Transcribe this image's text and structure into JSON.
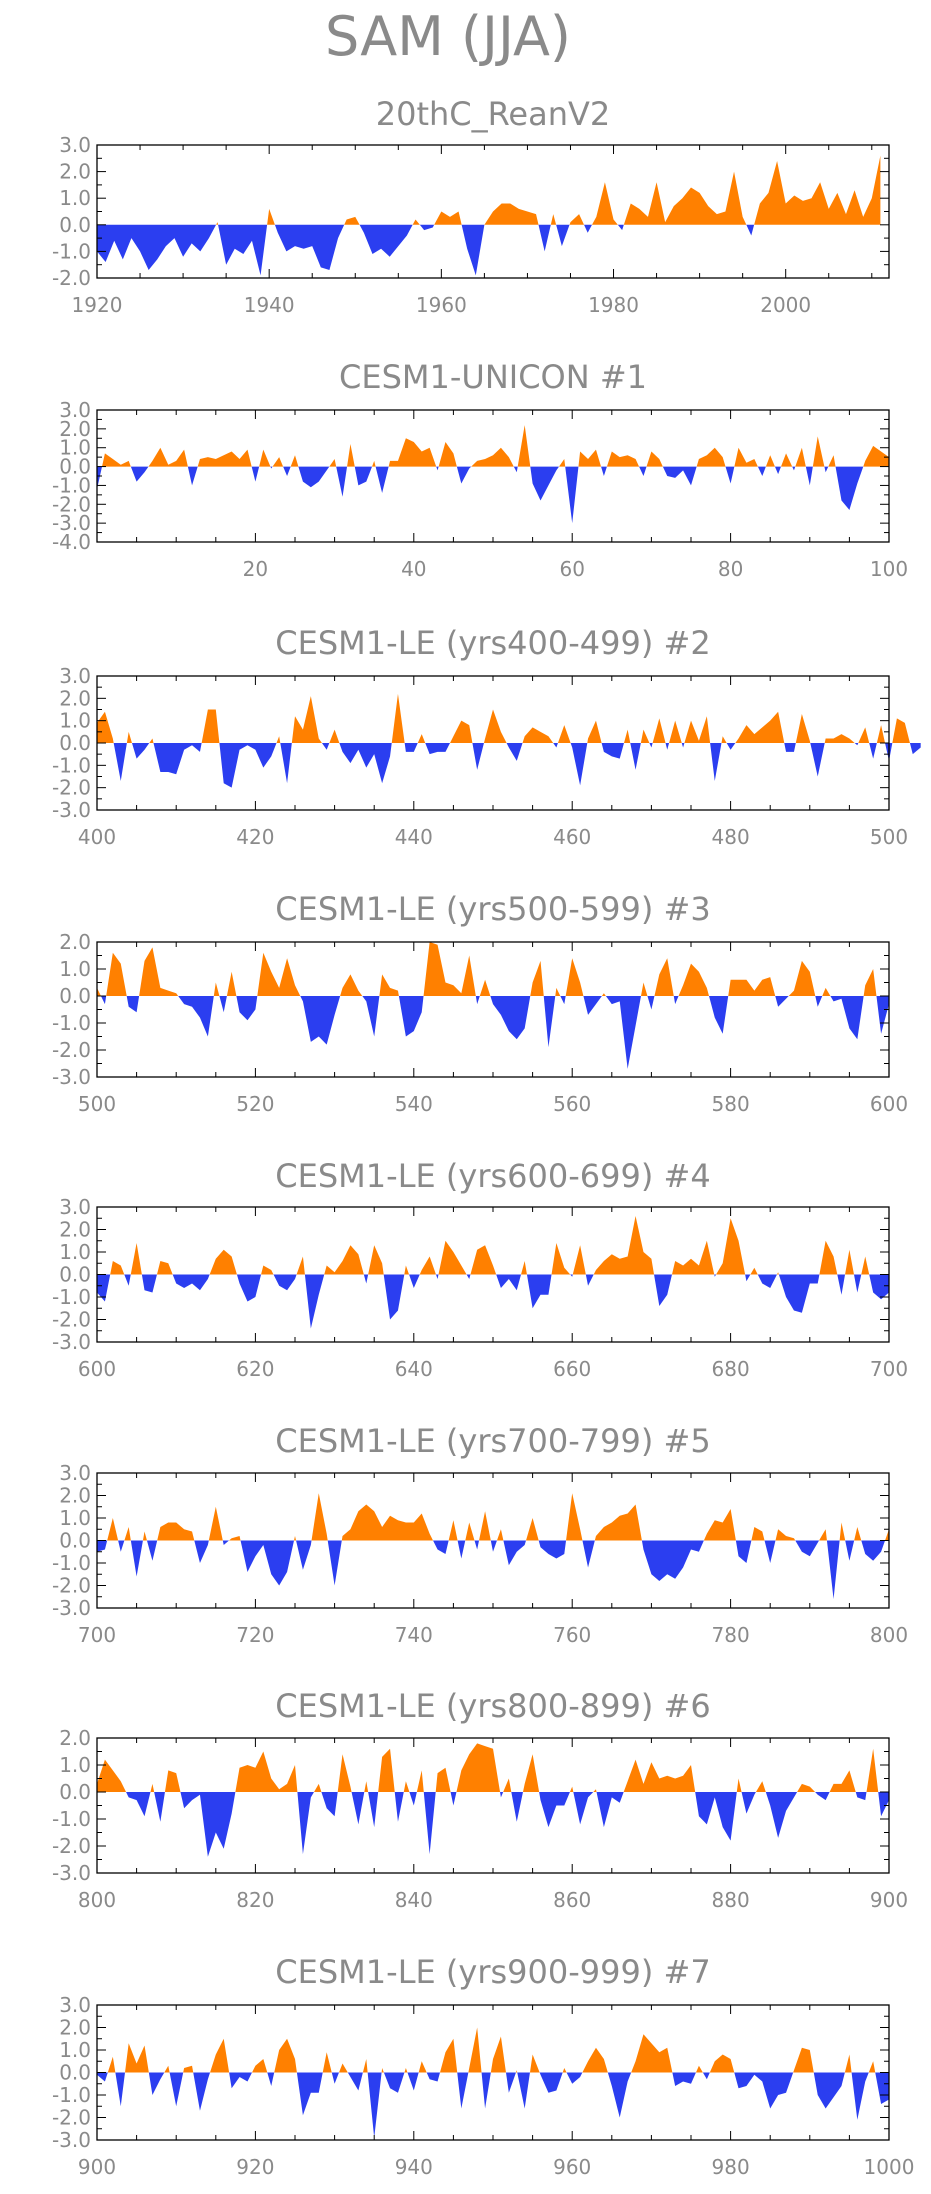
{
  "page_title": "SAM (JJA)",
  "colors": {
    "positive": "#ff8000",
    "negative": "#2b3ef0",
    "frame": "#000000",
    "text": "#8a8a8a"
  },
  "chart_data": [
    {
      "type": "area",
      "title": "20thC_ReanV2",
      "xlim": [
        1920,
        2012
      ],
      "ylim": [
        -2.0,
        3.0
      ],
      "x_ticks": [
        "1920",
        "1940",
        "1960",
        "1980",
        "2000"
      ],
      "y_ticks": [
        "3.0",
        "2.0",
        "1.0",
        "0.0",
        "-1.0",
        "-2.0"
      ],
      "x": [
        1920,
        1921,
        1922,
        1923,
        1924,
        1925,
        1926,
        1927,
        1928,
        1929,
        1930,
        1931,
        1932,
        1933,
        1934,
        1935,
        1936,
        1937,
        1938,
        1939,
        1940,
        1941,
        1942,
        1943,
        1944,
        1945,
        1946,
        1947,
        1948,
        1949,
        1950,
        1951,
        1952,
        1953,
        1954,
        1955,
        1956,
        1957,
        1958,
        1959,
        1960,
        1961,
        1962,
        1963,
        1964,
        1965,
        1966,
        1967,
        1968,
        1969,
        1970,
        1971,
        1972,
        1973,
        1974,
        1975,
        1976,
        1977,
        1978,
        1979,
        1980,
        1981,
        1982,
        1983,
        1984,
        1985,
        1986,
        1987,
        1988,
        1989,
        1990,
        1991,
        1992,
        1993,
        1994,
        1995,
        1996,
        1997,
        1998,
        1999,
        2000,
        2001,
        2002,
        2003,
        2004,
        2005,
        2006,
        2007,
        2008,
        2009,
        2010,
        2011
      ],
      "values": [
        -1.0,
        -1.4,
        -0.6,
        -1.3,
        -0.5,
        -1.0,
        -1.7,
        -1.3,
        -0.8,
        -0.5,
        -1.2,
        -0.7,
        -1.0,
        -0.5,
        0.1,
        -1.5,
        -0.9,
        -1.1,
        -0.6,
        -1.9,
        0.6,
        -0.3,
        -1.0,
        -0.8,
        -0.9,
        -0.8,
        -1.6,
        -1.7,
        -0.5,
        0.2,
        0.3,
        -0.3,
        -1.1,
        -0.9,
        -1.2,
        -0.8,
        -0.4,
        0.2,
        -0.2,
        -0.1,
        0.5,
        0.3,
        0.5,
        -0.9,
        -1.9,
        0.0,
        0.5,
        0.8,
        0.8,
        0.6,
        0.5,
        0.4,
        -1.0,
        0.4,
        -0.8,
        0.1,
        0.4,
        -0.3,
        0.3,
        1.6,
        0.2,
        -0.2,
        0.8,
        0.6,
        0.3,
        1.6,
        0.1,
        0.7,
        1.0,
        1.4,
        1.2,
        0.7,
        0.4,
        0.5,
        2.0,
        0.3,
        -0.4,
        0.8,
        1.2,
        2.4,
        0.8,
        1.1,
        0.9,
        1.0,
        1.6,
        0.6,
        1.2,
        0.4,
        1.3,
        0.3,
        1.0,
        2.6
      ]
    },
    {
      "type": "area",
      "title": "CESM1-UNICON          #1",
      "xlim": [
        0,
        100
      ],
      "ylim": [
        -4.0,
        3.0
      ],
      "x_ticks": [
        "20",
        "40",
        "60",
        "80",
        "100"
      ],
      "y_ticks": [
        "3.0",
        "2.0",
        "1.0",
        "0.0",
        "-1.0",
        "-2.0",
        "-3.0",
        "-4.0"
      ],
      "values": [
        -1.2,
        0.7,
        0.4,
        0.1,
        0.3,
        -0.8,
        -0.3,
        0.3,
        1.0,
        0.1,
        0.3,
        0.9,
        -1.0,
        0.4,
        0.5,
        0.4,
        0.6,
        0.8,
        0.4,
        0.9,
        -0.8,
        0.9,
        -0.1,
        0.5,
        -0.5,
        0.6,
        -0.8,
        -1.1,
        -0.8,
        -0.2,
        0.4,
        -1.6,
        1.2,
        -1.0,
        -0.8,
        0.3,
        -1.4,
        0.3,
        0.3,
        1.5,
        1.3,
        0.8,
        1.0,
        -0.2,
        1.3,
        0.7,
        -0.9,
        -0.1,
        0.3,
        0.4,
        0.6,
        1.0,
        0.5,
        -0.3,
        2.2,
        -0.9,
        -1.8,
        -1.0,
        -0.2,
        0.4,
        -3.0,
        0.8,
        0.4,
        0.9,
        -0.5,
        0.8,
        0.5,
        0.6,
        0.4,
        -0.5,
        0.8,
        0.4,
        -0.5,
        -0.6,
        -0.2,
        -1.0,
        0.4,
        0.6,
        1.0,
        0.5,
        -0.9,
        1.0,
        0.2,
        0.4,
        -0.5,
        0.6,
        -0.4,
        0.7,
        -0.2,
        1.0,
        -1.0,
        1.6,
        -0.3,
        0.6,
        -1.8,
        -2.3,
        -0.9,
        0.3,
        1.1,
        0.8,
        0.5
      ]
    },
    {
      "type": "area",
      "title": "CESM1-LE (yrs400-499) #2",
      "xlim": [
        400,
        500
      ],
      "ylim": [
        -3.0,
        3.0
      ],
      "x_ticks": [
        "400",
        "420",
        "440",
        "460",
        "480",
        "500"
      ],
      "y_ticks": [
        "3.0",
        "2.0",
        "1.0",
        "0.0",
        "-1.0",
        "-2.0",
        "-3.0"
      ],
      "values": [
        0.9,
        1.4,
        0.2,
        -1.7,
        0.5,
        -0.7,
        -0.3,
        0.2,
        -1.3,
        -1.3,
        -1.4,
        -0.3,
        -0.1,
        -0.4,
        1.5,
        1.5,
        -1.8,
        -2.0,
        -0.3,
        -0.1,
        -0.3,
        -1.1,
        -0.6,
        0.3,
        -1.8,
        1.2,
        0.6,
        2.1,
        0.2,
        -0.3,
        0.6,
        -0.4,
        -0.9,
        -0.3,
        -1.1,
        -0.5,
        -1.8,
        -0.6,
        2.2,
        -0.4,
        -0.4,
        0.4,
        -0.5,
        -0.4,
        -0.4,
        0.3,
        1.0,
        0.8,
        -1.2,
        0.2,
        1.5,
        0.5,
        -0.2,
        -0.8,
        0.3,
        0.7,
        0.5,
        0.3,
        -0.2,
        0.8,
        -0.2,
        -1.9,
        0.2,
        1.0,
        -0.4,
        -0.6,
        -0.7,
        0.6,
        -1.2,
        0.6,
        -0.2,
        1.1,
        -0.3,
        1.0,
        -0.2,
        1.0,
        0.1,
        1.2,
        -1.7,
        0.3,
        -0.3,
        0.2,
        0.8,
        0.4,
        0.7,
        1.0,
        1.4,
        -0.4,
        -0.4,
        1.3,
        0.1,
        -1.5,
        0.2,
        0.2,
        0.4,
        0.2,
        -0.1,
        0.7,
        -0.7,
        0.8,
        -0.8,
        1.1,
        0.9,
        -0.5,
        -0.2
      ]
    },
    {
      "type": "area",
      "title": "CESM1-LE (yrs500-599) #3",
      "xlim": [
        500,
        600
      ],
      "ylim": [
        -3.0,
        2.0
      ],
      "x_ticks": [
        "500",
        "520",
        "540",
        "560",
        "580",
        "600"
      ],
      "y_ticks": [
        "2.0",
        "1.0",
        "0.0",
        "-1.0",
        "-2.0",
        "-3.0"
      ],
      "values": [
        0.3,
        -0.3,
        1.6,
        1.2,
        -0.4,
        -0.6,
        1.3,
        1.8,
        0.3,
        0.2,
        0.1,
        -0.3,
        -0.4,
        -0.8,
        -1.5,
        0.5,
        -0.6,
        0.9,
        -0.6,
        -0.9,
        -0.5,
        1.6,
        0.9,
        0.3,
        1.4,
        0.4,
        -0.2,
        -1.7,
        -1.5,
        -1.8,
        -0.7,
        0.3,
        0.8,
        0.2,
        -0.2,
        -1.5,
        0.8,
        0.3,
        0.2,
        -1.5,
        -1.3,
        -0.6,
        2.0,
        1.9,
        0.5,
        0.4,
        0.1,
        1.5,
        -0.3,
        0.6,
        -0.3,
        -0.7,
        -1.3,
        -1.6,
        -1.2,
        0.5,
        1.3,
        -1.9,
        0.3,
        -0.3,
        1.4,
        0.5,
        -0.7,
        -0.3,
        0.1,
        -0.3,
        -0.2,
        -2.7,
        -1.1,
        0.5,
        -0.5,
        0.8,
        1.4,
        -0.3,
        0.4,
        1.2,
        0.9,
        0.3,
        -0.8,
        -1.4,
        0.6,
        0.6,
        0.6,
        0.2,
        0.6,
        0.7,
        -0.4,
        -0.1,
        0.2,
        1.3,
        0.9,
        -0.4,
        0.3,
        -0.2,
        -0.1,
        -1.2,
        -1.6,
        0.4,
        1.0,
        -1.4,
        -0.3
      ]
    },
    {
      "type": "area",
      "title": "CESM1-LE (yrs600-699) #4",
      "xlim": [
        600,
        700
      ],
      "ylim": [
        -3.0,
        3.0
      ],
      "x_ticks": [
        "600",
        "620",
        "640",
        "660",
        "680",
        "700"
      ],
      "y_ticks": [
        "3.0",
        "2.0",
        "1.0",
        "0.0",
        "-1.0",
        "-2.0",
        "-3.0"
      ],
      "values": [
        -0.8,
        -1.2,
        0.6,
        0.4,
        -0.5,
        1.4,
        -0.7,
        -0.8,
        0.6,
        0.5,
        -0.4,
        -0.6,
        -0.4,
        -0.7,
        -0.2,
        0.7,
        1.1,
        0.8,
        -0.4,
        -1.2,
        -1.0,
        0.4,
        0.2,
        -0.5,
        -0.7,
        -0.2,
        0.8,
        -2.4,
        -0.9,
        0.4,
        0.1,
        0.6,
        1.3,
        0.9,
        -0.4,
        1.3,
        0.5,
        -2.0,
        -1.6,
        0.4,
        -0.6,
        0.2,
        0.8,
        -0.2,
        1.5,
        1.0,
        0.4,
        -0.2,
        1.1,
        1.3,
        0.4,
        -0.6,
        -0.2,
        -0.7,
        0.6,
        -1.5,
        -0.9,
        -0.9,
        1.4,
        0.3,
        -0.1,
        1.3,
        -0.5,
        0.2,
        0.6,
        0.9,
        0.7,
        0.8,
        2.6,
        1.0,
        0.7,
        -1.4,
        -0.9,
        0.6,
        0.4,
        0.7,
        0.4,
        1.5,
        -0.1,
        0.5,
        2.5,
        1.5,
        -0.3,
        0.3,
        -0.4,
        -0.6,
        0.1,
        -1.0,
        -1.6,
        -1.7,
        -0.4,
        -0.4,
        1.5,
        0.8,
        -0.9,
        1.1,
        -0.8,
        0.8,
        -0.8,
        -1.1,
        -0.8
      ]
    },
    {
      "type": "area",
      "title": "CESM1-LE (yrs700-799) #5",
      "xlim": [
        700,
        800
      ],
      "ylim": [
        -3.0,
        3.0
      ],
      "x_ticks": [
        "700",
        "720",
        "740",
        "760",
        "780",
        "800"
      ],
      "y_ticks": [
        "3.0",
        "2.0",
        "1.0",
        "0.0",
        "-1.0",
        "-2.0",
        "-3.0"
      ],
      "values": [
        -0.5,
        -0.4,
        1.0,
        -0.5,
        0.6,
        -1.6,
        0.4,
        -0.9,
        0.6,
        0.8,
        0.8,
        0.5,
        0.4,
        -1.0,
        -0.2,
        1.5,
        -0.2,
        0.1,
        0.2,
        -1.4,
        -0.7,
        -0.2,
        -1.5,
        -2.0,
        -1.4,
        0.2,
        -1.3,
        -0.2,
        2.1,
        0.3,
        -2.0,
        0.2,
        0.5,
        1.3,
        1.6,
        1.3,
        0.6,
        1.1,
        0.9,
        0.8,
        0.8,
        1.2,
        0.3,
        -0.4,
        -0.6,
        0.9,
        -0.8,
        0.8,
        -0.4,
        1.3,
        -0.5,
        0.5,
        -1.1,
        -0.5,
        -0.2,
        1.0,
        -0.3,
        -0.6,
        -0.8,
        -0.6,
        2.1,
        0.5,
        -1.2,
        0.2,
        0.6,
        0.8,
        1.1,
        1.2,
        1.6,
        -0.4,
        -1.5,
        -1.8,
        -1.5,
        -1.7,
        -1.2,
        -0.4,
        -0.5,
        0.3,
        0.9,
        0.8,
        1.4,
        -0.7,
        -1.0,
        0.6,
        0.4,
        -1.0,
        0.5,
        0.2,
        0.1,
        -0.5,
        -0.7,
        -0.1,
        0.5,
        -2.6,
        0.8,
        -0.9,
        0.6,
        -0.6,
        -0.9,
        -0.5,
        0.5
      ]
    },
    {
      "type": "area",
      "title": "CESM1-LE (yrs800-899) #6",
      "xlim": [
        800,
        900
      ],
      "ylim": [
        -3.0,
        2.0
      ],
      "x_ticks": [
        "800",
        "820",
        "840",
        "860",
        "880",
        "900"
      ],
      "y_ticks": [
        "2.0",
        "1.0",
        "0.0",
        "-1.0",
        "-2.0",
        "-3.0"
      ],
      "values": [
        0.3,
        1.2,
        0.8,
        0.4,
        -0.2,
        -0.3,
        -0.9,
        0.3,
        -1.1,
        0.8,
        0.7,
        -0.6,
        -0.3,
        -0.1,
        -2.4,
        -1.5,
        -2.1,
        -0.8,
        0.9,
        1.0,
        0.9,
        1.5,
        0.5,
        0.1,
        0.3,
        1.0,
        -2.3,
        -0.2,
        0.3,
        -0.6,
        -0.9,
        1.4,
        0.2,
        -1.2,
        0.4,
        -1.3,
        1.3,
        1.6,
        -1.1,
        0.4,
        -0.5,
        0.8,
        -2.3,
        0.7,
        0.9,
        -0.5,
        0.8,
        1.4,
        1.8,
        1.7,
        1.6,
        -0.2,
        0.5,
        -1.1,
        0.3,
        1.4,
        -0.3,
        -1.3,
        -0.5,
        -0.5,
        0.2,
        -1.2,
        -0.2,
        0.1,
        -1.3,
        -0.2,
        -0.4,
        0.4,
        1.2,
        0.3,
        1.1,
        0.5,
        0.6,
        0.5,
        0.6,
        1.0,
        -0.9,
        -1.2,
        -0.2,
        -1.3,
        -1.8,
        0.5,
        -0.8,
        -0.1,
        0.4,
        -0.5,
        -1.7,
        -0.7,
        -0.2,
        0.3,
        0.2,
        -0.1,
        -0.3,
        0.3,
        0.3,
        0.8,
        -0.2,
        -0.3,
        1.6,
        -0.9,
        -0.3
      ]
    },
    {
      "type": "area",
      "title": "CESM1-LE (yrs900-999) #7",
      "xlim": [
        900,
        1000
      ],
      "ylim": [
        -3.0,
        3.0
      ],
      "x_ticks": [
        "900",
        "920",
        "940",
        "960",
        "980",
        "1000"
      ],
      "y_ticks": [
        "3.0",
        "2.0",
        "1.0",
        "0.0",
        "-1.0",
        "-2.0",
        "-3.0"
      ],
      "values": [
        -0.1,
        -0.4,
        0.7,
        -1.5,
        1.3,
        0.4,
        1.2,
        -1.0,
        -0.3,
        0.3,
        -1.5,
        0.2,
        0.3,
        -1.7,
        -0.3,
        0.8,
        1.5,
        -0.7,
        -0.2,
        -0.4,
        0.3,
        0.6,
        -0.6,
        1.0,
        1.5,
        0.6,
        -1.9,
        -0.9,
        -0.9,
        0.9,
        -0.5,
        0.4,
        -0.2,
        -0.8,
        0.6,
        -2.9,
        0.2,
        -0.7,
        -0.9,
        0.2,
        -0.8,
        0.5,
        -0.3,
        -0.4,
        0.9,
        1.5,
        -1.6,
        0.2,
        2.0,
        -1.6,
        0.6,
        1.6,
        -0.9,
        0.1,
        -1.6,
        0.8,
        -0.1,
        -0.9,
        -0.8,
        0.2,
        -0.5,
        -0.2,
        0.5,
        1.1,
        0.6,
        -0.6,
        -2.0,
        -0.4,
        0.5,
        1.7,
        1.3,
        0.9,
        1.1,
        -0.6,
        -0.4,
        -0.5,
        0.3,
        -0.3,
        0.5,
        0.8,
        0.6,
        -0.7,
        -0.6,
        -0.1,
        -0.4,
        -1.6,
        -1.0,
        -0.9,
        0.1,
        1.1,
        1.0,
        -1.0,
        -1.6,
        -1.1,
        -0.6,
        0.8,
        -2.1,
        -0.4,
        0.5,
        -1.4,
        -1.2
      ]
    }
  ]
}
